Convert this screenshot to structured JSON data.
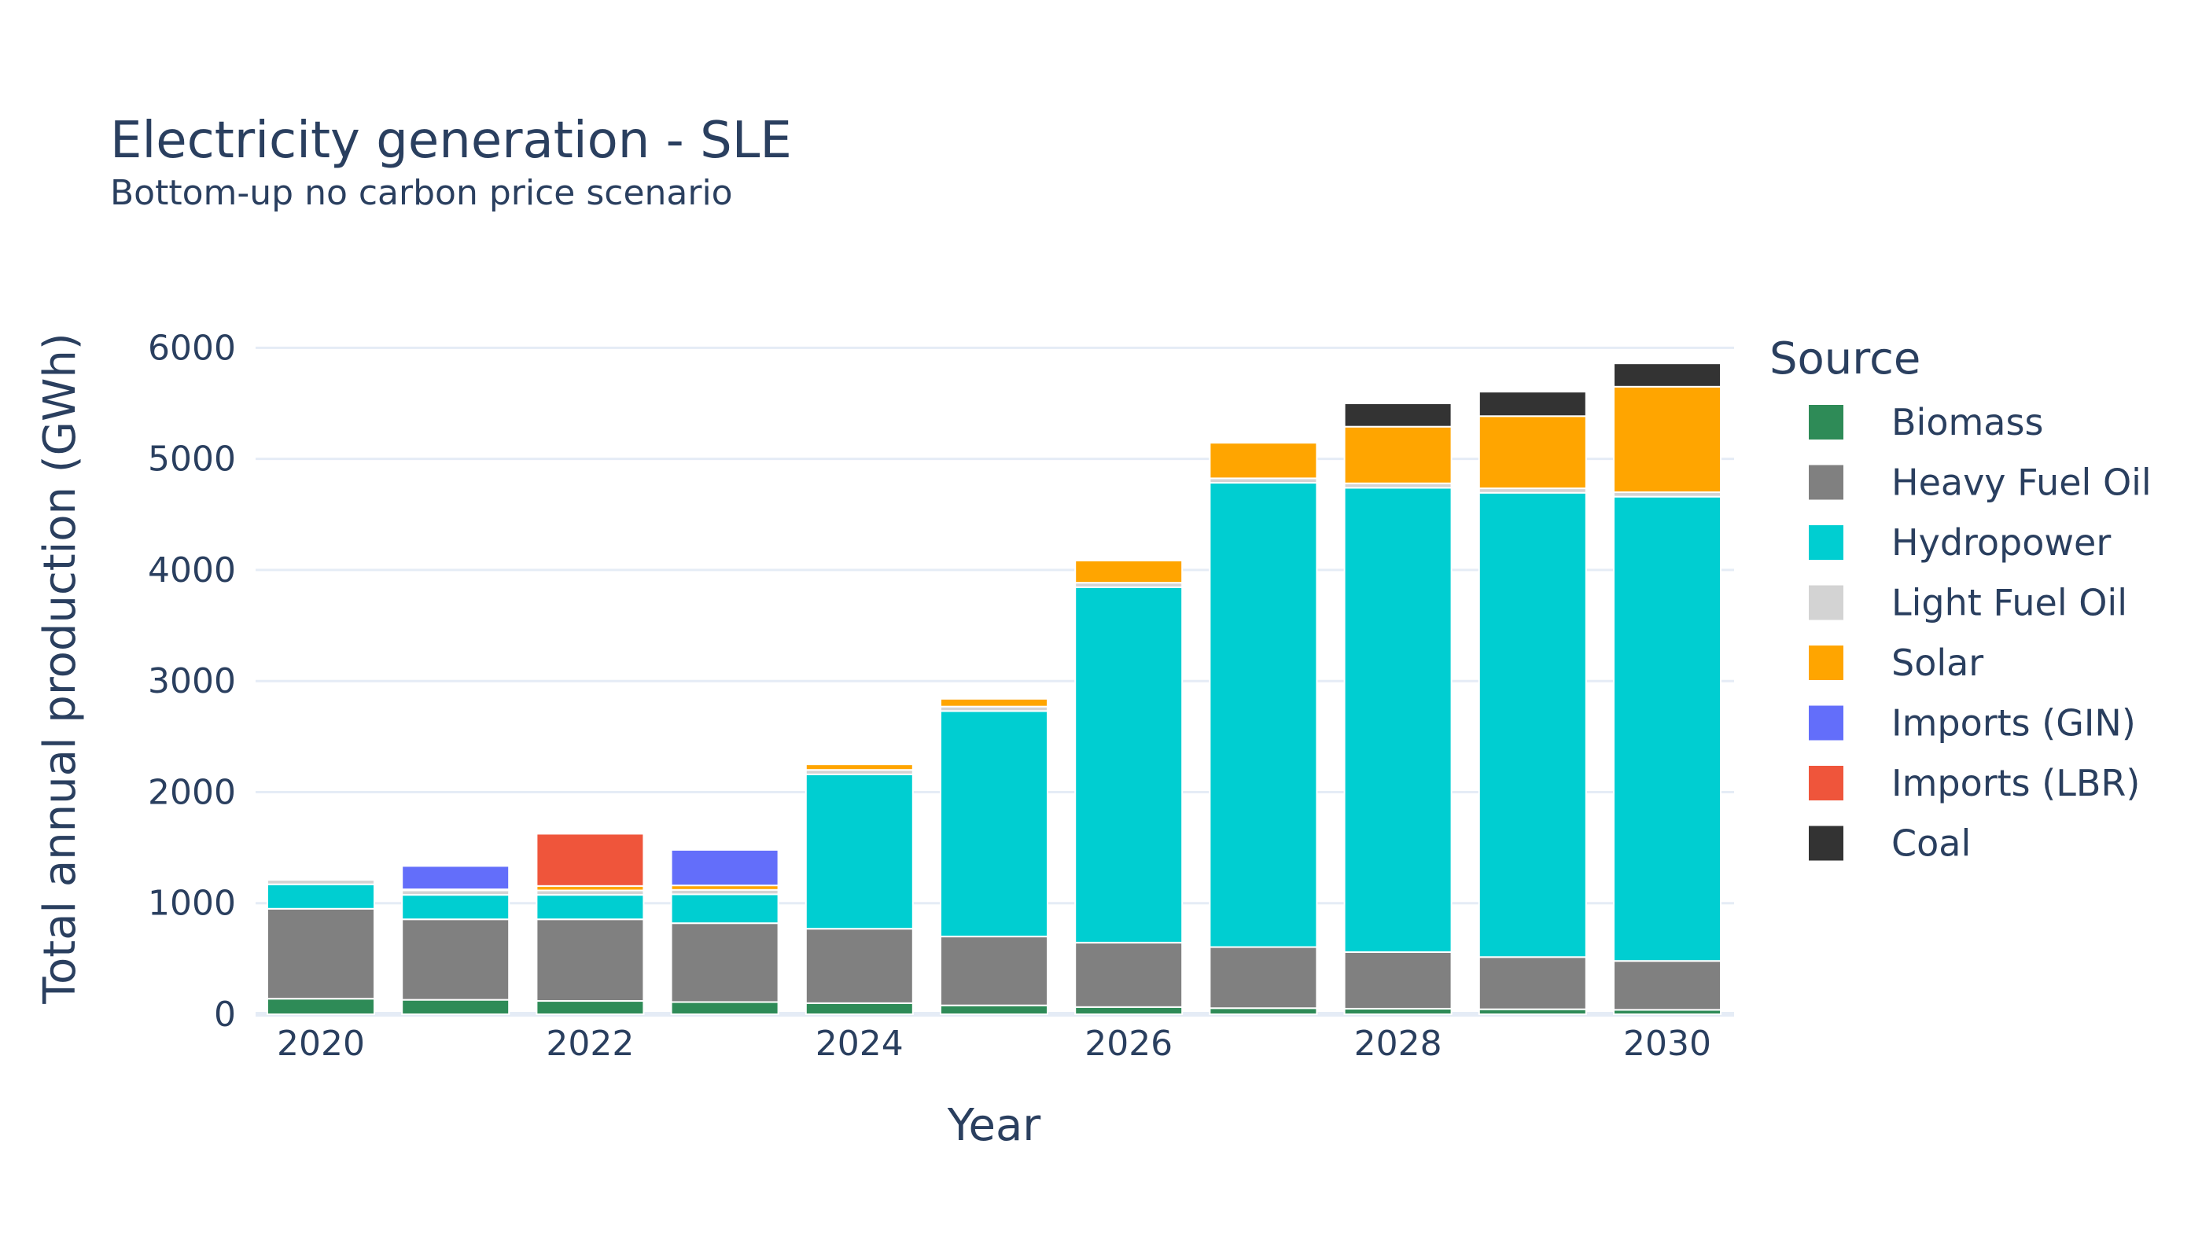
{
  "chart_data": {
    "type": "bar",
    "stacked": true,
    "title": "Electricity generation - SLE",
    "subtitle": "Bottom-up no carbon price scenario",
    "xlabel": "Year",
    "ylabel": "Total annual production (GWh)",
    "ylim": [
      0,
      6300
    ],
    "yticks": [
      0,
      1000,
      2000,
      3000,
      4000,
      5000,
      6000
    ],
    "xticks": [
      2020,
      2022,
      2024,
      2026,
      2028,
      2030
    ],
    "legend_title": "Source",
    "legend_position": "right",
    "grid": true,
    "x": [
      2020,
      2021,
      2022,
      2023,
      2024,
      2025,
      2026,
      2027,
      2028,
      2029,
      2030
    ],
    "series": [
      {
        "name": "Biomass",
        "color": "#2e8b57",
        "values": [
          140,
          130,
          120,
          110,
          100,
          80,
          65,
          55,
          50,
          45,
          40
        ]
      },
      {
        "name": "Heavy Fuel Oil",
        "color": "#808080",
        "values": [
          810,
          725,
          735,
          710,
          670,
          620,
          580,
          550,
          510,
          470,
          440
        ]
      },
      {
        "name": "Hydropower",
        "color": "#00ced1",
        "values": [
          220,
          220,
          220,
          260,
          1390,
          2030,
          3200,
          4180,
          4180,
          4180,
          4180
        ]
      },
      {
        "name": "Light Fuel Oil",
        "color": "#d3d3d3",
        "values": [
          40,
          40,
          40,
          40,
          40,
          40,
          40,
          40,
          40,
          40,
          40
        ]
      },
      {
        "name": "Solar",
        "color": "#ffa500",
        "values": [
          0,
          10,
          40,
          40,
          50,
          70,
          200,
          320,
          510,
          650,
          950
        ]
      },
      {
        "name": "Imports (GIN)",
        "color": "#636efa",
        "values": [
          0,
          210,
          0,
          320,
          0,
          0,
          0,
          0,
          0,
          0,
          0
        ]
      },
      {
        "name": "Imports (LBR)",
        "color": "#ef553b",
        "values": [
          0,
          0,
          470,
          0,
          0,
          0,
          0,
          0,
          0,
          0,
          0
        ]
      },
      {
        "name": "Coal",
        "color": "#333333",
        "values": [
          0,
          0,
          0,
          0,
          0,
          0,
          0,
          0,
          210,
          220,
          210
        ]
      }
    ]
  }
}
